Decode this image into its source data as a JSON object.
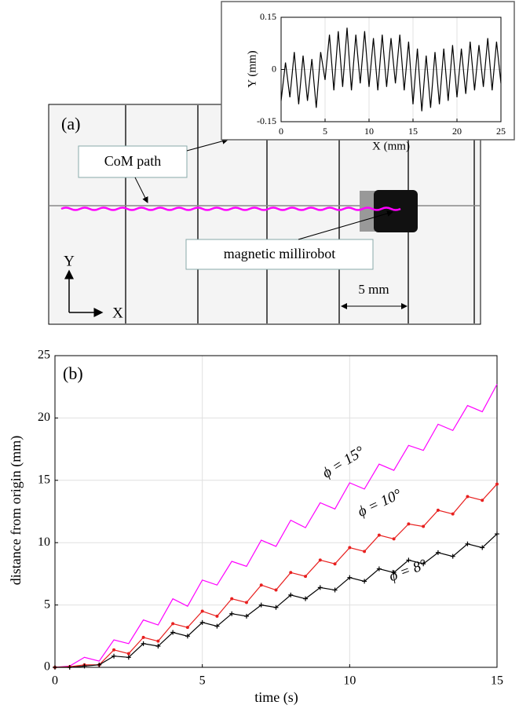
{
  "photo": {
    "panel_label": "(a)",
    "com_label": "CoM path",
    "robot_label": "magnetic millirobot",
    "scale_label": "5 mm",
    "y_arrow": "Y",
    "x_arrow": "X"
  },
  "chart_data": [
    {
      "type": "line",
      "xlabel": "X (mm)",
      "ylabel": "Y (mm)",
      "grid": true,
      "xlim": [
        0,
        25
      ],
      "ylim": [
        -0.15,
        0.15
      ],
      "xticks": [
        0,
        5,
        10,
        15,
        20,
        25
      ],
      "yticks": [
        -0.15,
        0,
        0.15
      ],
      "x": [
        0,
        0.5,
        1,
        1.5,
        2,
        2.5,
        3,
        3.5,
        4,
        4.5,
        5,
        5.5,
        6,
        6.5,
        7,
        7.5,
        8,
        8.5,
        9,
        9.5,
        10,
        10.5,
        11,
        11.5,
        12,
        12.5,
        13,
        13.5,
        14,
        14.5,
        15,
        15.5,
        16,
        16.5,
        17,
        17.5,
        18,
        18.5,
        19,
        19.5,
        20,
        20.5,
        21,
        21.5,
        22,
        22.5,
        23,
        23.5,
        24,
        24.5,
        25
      ],
      "series": [
        {
          "color": "#000000",
          "values": [
            -0.09,
            0.02,
            -0.08,
            0.05,
            -0.1,
            0.04,
            -0.09,
            0.03,
            -0.11,
            0.05,
            -0.03,
            0.1,
            -0.06,
            0.11,
            -0.05,
            0.12,
            -0.06,
            0.1,
            -0.04,
            0.11,
            -0.05,
            0.09,
            -0.06,
            0.1,
            -0.05,
            0.09,
            -0.04,
            0.1,
            -0.06,
            0.08,
            -0.1,
            0.06,
            -0.12,
            0.04,
            -0.11,
            0.05,
            -0.1,
            0.06,
            -0.09,
            0.07,
            -0.08,
            0.06,
            -0.07,
            0.08,
            -0.06,
            0.07,
            -0.05,
            0.09,
            -0.06,
            0.08,
            -0.04
          ]
        }
      ]
    },
    {
      "type": "line",
      "panel_label": "(b)",
      "xlabel": "time (s)",
      "ylabel": "distance from origin (mm)",
      "grid": true,
      "xlim": [
        0,
        15
      ],
      "ylim": [
        0,
        25
      ],
      "xticks": [
        0,
        5,
        10,
        15
      ],
      "yticks": [
        0,
        5,
        10,
        15,
        20,
        25
      ],
      "x": [
        0,
        0.5,
        1,
        1.5,
        2,
        2.5,
        3,
        3.5,
        4,
        4.5,
        5,
        5.5,
        6,
        6.5,
        7,
        7.5,
        8,
        8.5,
        9,
        9.5,
        10,
        10.5,
        11,
        11.5,
        12,
        12.5,
        13,
        13.5,
        14,
        14.5,
        15
      ],
      "annotations": [
        "ϕ = 15°",
        "ϕ = 10°",
        "ϕ = 8°"
      ],
      "series": [
        {
          "color": "#ff00ff",
          "marker": "none",
          "values": [
            0,
            0.1,
            0.8,
            0.5,
            2.2,
            1.9,
            3.8,
            3.4,
            5.5,
            4.9,
            7.0,
            6.6,
            8.5,
            8.1,
            10.2,
            9.7,
            11.8,
            11.2,
            13.2,
            12.7,
            14.8,
            14.3,
            16.3,
            15.8,
            17.8,
            17.4,
            19.5,
            19.0,
            21.0,
            20.5,
            22.7
          ]
        },
        {
          "color": "#e8201f",
          "marker": "dot",
          "values": [
            0,
            0.05,
            0.2,
            0.2,
            1.4,
            1.1,
            2.4,
            2.1,
            3.5,
            3.2,
            4.5,
            4.1,
            5.5,
            5.2,
            6.6,
            6.2,
            7.6,
            7.3,
            8.6,
            8.3,
            9.6,
            9.3,
            10.6,
            10.3,
            11.5,
            11.3,
            12.6,
            12.3,
            13.7,
            13.4,
            14.7
          ]
        },
        {
          "color": "#000000",
          "marker": "plus",
          "values": [
            0,
            0,
            0.1,
            0.2,
            0.9,
            0.8,
            1.9,
            1.7,
            2.8,
            2.5,
            3.6,
            3.3,
            4.3,
            4.1,
            5.0,
            4.8,
            5.8,
            5.5,
            6.4,
            6.2,
            7.2,
            6.9,
            7.9,
            7.6,
            8.6,
            8.3,
            9.2,
            8.9,
            9.9,
            9.6,
            10.7
          ]
        }
      ]
    }
  ]
}
